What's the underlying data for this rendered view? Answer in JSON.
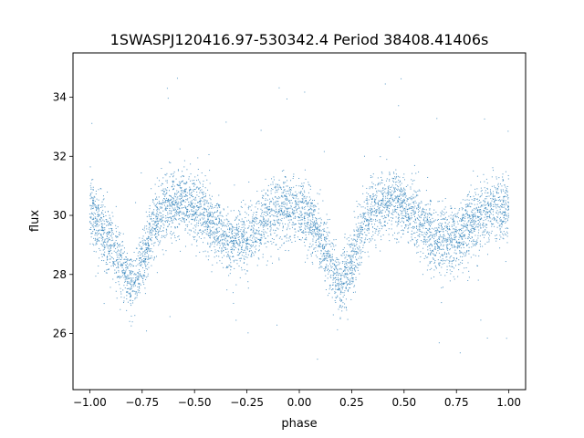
{
  "chart_data": {
    "type": "scatter",
    "title": "1SWASPJ120416.97-530342.4 Period 38408.41406s",
    "xlabel": "phase",
    "ylabel": "flux",
    "xlim": [
      -1.08,
      1.08
    ],
    "ylim": [
      24.1,
      35.5
    ],
    "grid": false,
    "legend": "none",
    "marker_color": "#1f77b4",
    "x_ticks": [
      {
        "value": -1.0,
        "label": "−1.00"
      },
      {
        "value": -0.75,
        "label": "−0.75"
      },
      {
        "value": -0.5,
        "label": "−0.50"
      },
      {
        "value": -0.25,
        "label": "−0.25"
      },
      {
        "value": 0.0,
        "label": "0.00"
      },
      {
        "value": 0.25,
        "label": "0.25"
      },
      {
        "value": 0.5,
        "label": "0.50"
      },
      {
        "value": 0.75,
        "label": "0.75"
      },
      {
        "value": 1.0,
        "label": "1.00"
      }
    ],
    "y_ticks": [
      {
        "value": 26,
        "label": "26"
      },
      {
        "value": 28,
        "label": "28"
      },
      {
        "value": 30,
        "label": "30"
      },
      {
        "value": 32,
        "label": "32"
      },
      {
        "value": 34,
        "label": "34"
      }
    ],
    "phase_range": [
      -1.0,
      1.0
    ],
    "mean_flux": 29.9,
    "primary_minimum": {
      "phase": 0.2,
      "flux": 27.6
    },
    "secondary_minimum": {
      "phase": -0.3,
      "flux": 29.1
    },
    "maxima": [
      {
        "phase": -0.55,
        "flux": 30.6
      },
      {
        "phase": 0.45,
        "flux": 30.6
      }
    ],
    "scatter_sigma": 0.7,
    "trend": [
      [
        -1.0,
        30.2
      ],
      [
        -0.95,
        29.7
      ],
      [
        -0.9,
        29.0
      ],
      [
        -0.85,
        28.3
      ],
      [
        -0.8,
        27.7
      ],
      [
        -0.75,
        28.3
      ],
      [
        -0.7,
        29.6
      ],
      [
        -0.65,
        30.2
      ],
      [
        -0.6,
        30.4
      ],
      [
        -0.55,
        30.5
      ],
      [
        -0.5,
        30.3
      ],
      [
        -0.45,
        30.0
      ],
      [
        -0.4,
        29.6
      ],
      [
        -0.35,
        29.2
      ],
      [
        -0.3,
        29.1
      ],
      [
        -0.25,
        29.2
      ],
      [
        -0.2,
        29.6
      ],
      [
        -0.15,
        29.9
      ],
      [
        -0.1,
        30.2
      ],
      [
        -0.05,
        30.3
      ],
      [
        0.0,
        30.2
      ],
      [
        0.05,
        29.9
      ],
      [
        0.1,
        29.3
      ],
      [
        0.15,
        28.4
      ],
      [
        0.2,
        27.7
      ],
      [
        0.25,
        28.4
      ],
      [
        0.3,
        29.6
      ],
      [
        0.35,
        30.2
      ],
      [
        0.4,
        30.4
      ],
      [
        0.45,
        30.5
      ],
      [
        0.5,
        30.3
      ],
      [
        0.55,
        30.0
      ],
      [
        0.6,
        29.6
      ],
      [
        0.65,
        29.2
      ],
      [
        0.7,
        29.1
      ],
      [
        0.75,
        29.2
      ],
      [
        0.8,
        29.6
      ],
      [
        0.85,
        29.9
      ],
      [
        0.9,
        30.2
      ],
      [
        0.95,
        30.3
      ],
      [
        1.0,
        30.2
      ]
    ]
  }
}
